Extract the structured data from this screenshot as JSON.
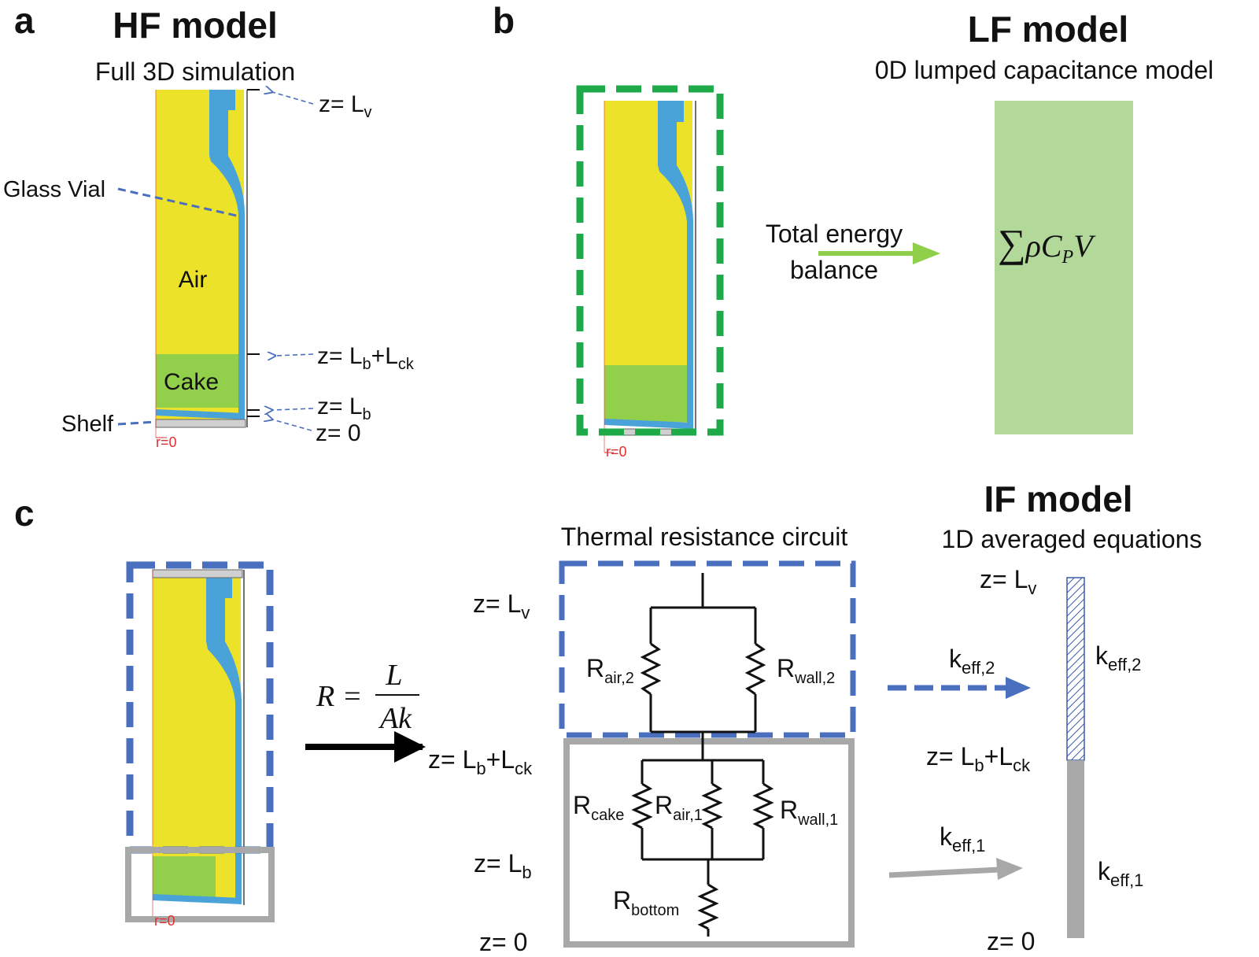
{
  "panel_a": {
    "letter": "a",
    "title": "HF model",
    "subtitle": "Full 3D simulation",
    "labels": {
      "glass_vial": "Glass Vial",
      "air": "Air",
      "cake": "Cake",
      "shelf": "Shelf",
      "r0": "r=0"
    },
    "levels": {
      "z_prefix": "z= ",
      "lv": "L",
      "lv_sub": "v",
      "lb": "L",
      "lb_sub": "b",
      "plus": "+L",
      "ck_sub": "ck",
      "zero": "0"
    }
  },
  "panel_b": {
    "letter": "b",
    "title": "LF model",
    "subtitle": "0D lumped capacitance model",
    "arrow_label_1": "Total energy",
    "arrow_label_2": "balance",
    "formula_sum": "∑",
    "formula_rho": "ρ",
    "formula_c": "C",
    "formula_p": "P",
    "formula_v": "V",
    "r0": "r=0"
  },
  "panel_c": {
    "letter": "c",
    "r0": "r=0",
    "formula_r": "R =",
    "formula_num": "L",
    "formula_den": "Ak",
    "circuit_title": "Thermal resistance circuit",
    "if_title": "IF model",
    "if_subtitle": "1D averaged equations",
    "z_prefix": "z= ",
    "L": "L",
    "v": "v",
    "b": "b",
    "plus_l": "+L",
    "ck": "ck",
    "zero": "0",
    "R": "R",
    "air2": "air,2",
    "wall2": "wall,2",
    "cake": "cake",
    "air1": "air,1",
    "wall1": "wall,1",
    "bottom": "bottom",
    "k": "k",
    "eff2": "eff,2",
    "eff1": "eff,1"
  },
  "colors": {
    "air": "#ece22a",
    "cake": "#92cf4a",
    "glass": "#4aa3d8",
    "lf_box": "#b3d99a",
    "green_dash": "#1faa4a",
    "blue_dash": "#4a6fbf",
    "grey_box": "#a8a8a8",
    "arrow_green": "#8fcf4a",
    "arrow_blue": "#4a6fbf",
    "arrow_grey": "#a8a8a8"
  }
}
